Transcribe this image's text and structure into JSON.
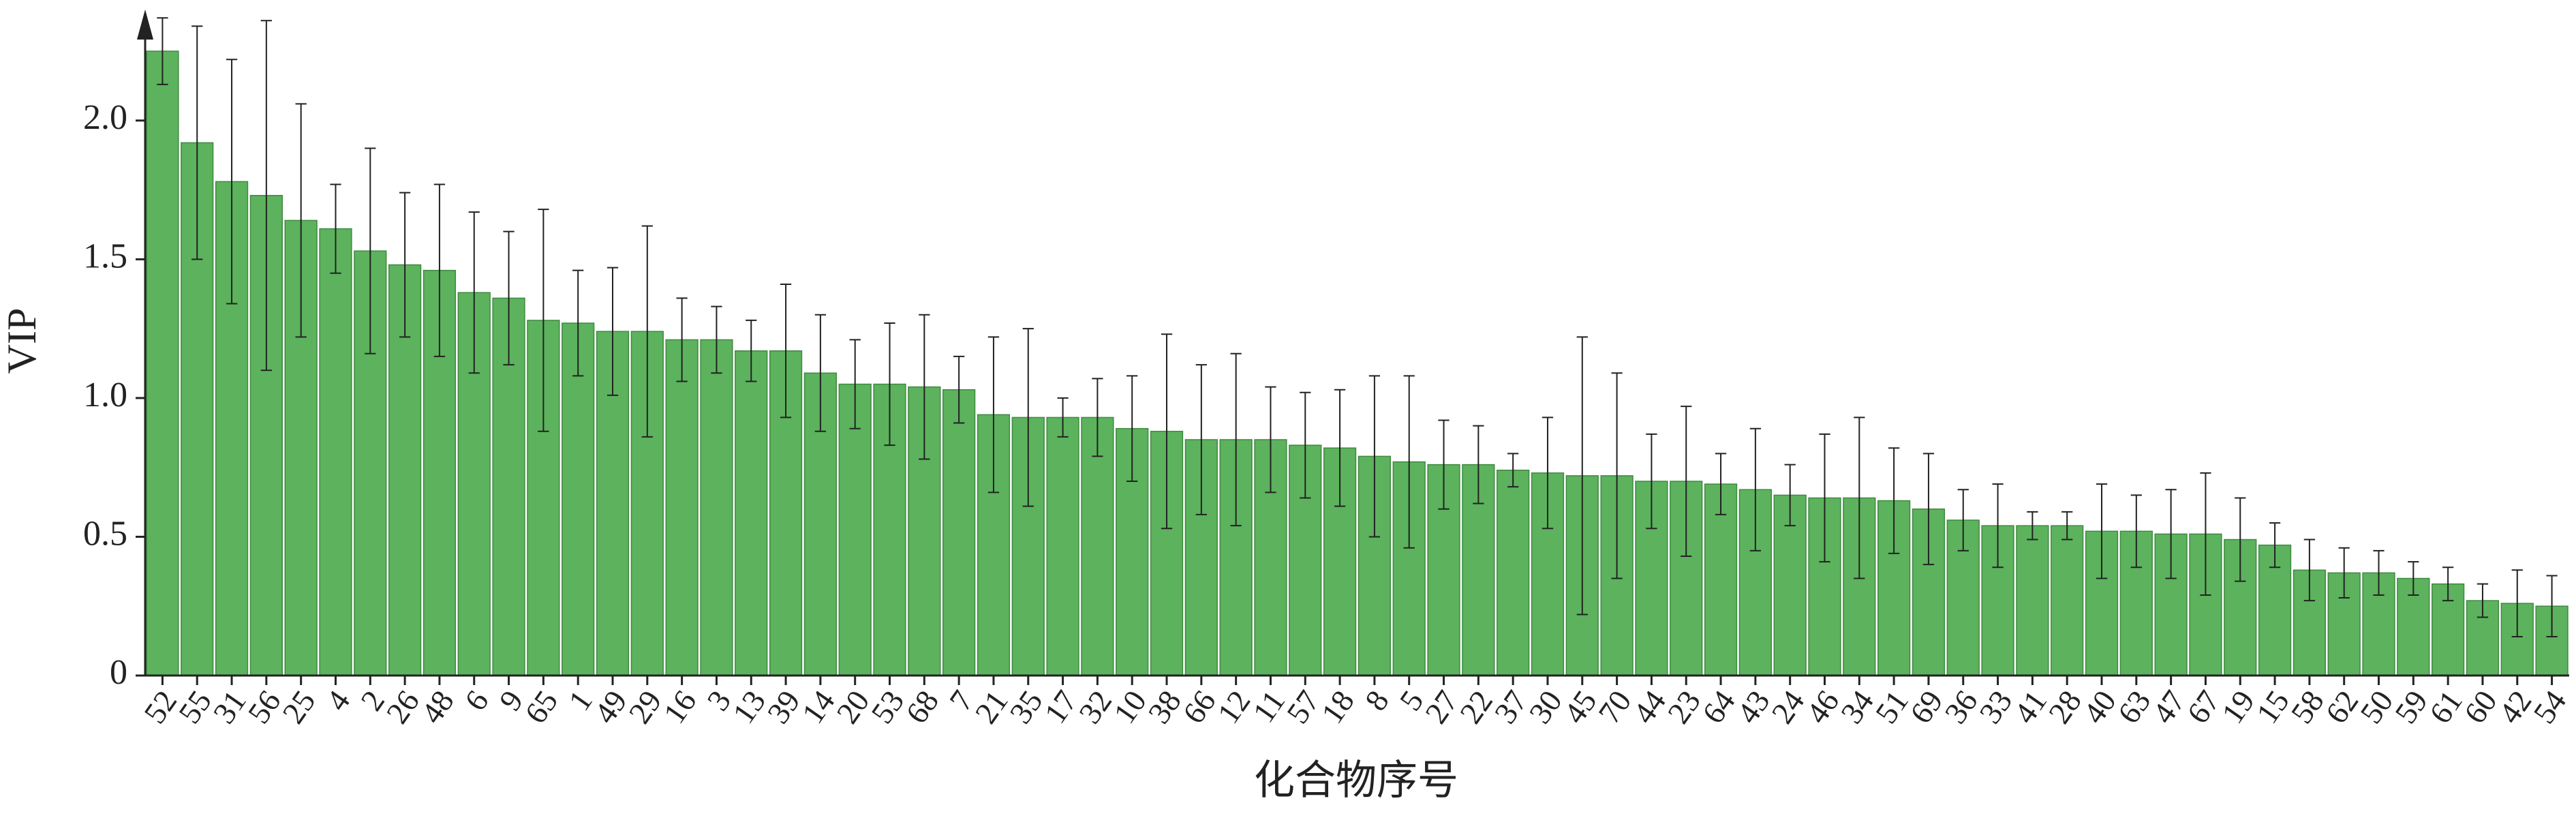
{
  "chart_data": {
    "type": "bar",
    "x_label": "化合物序号",
    "y_label": "VIP",
    "categories": [
      "52",
      "55",
      "31",
      "56",
      "25",
      "4",
      "2",
      "26",
      "48",
      "6",
      "9",
      "65",
      "1",
      "49",
      "29",
      "16",
      "3",
      "13",
      "39",
      "14",
      "20",
      "53",
      "68",
      "7",
      "21",
      "35",
      "17",
      "32",
      "10",
      "38",
      "66",
      "12",
      "11",
      "57",
      "18",
      "8",
      "5",
      "27",
      "22",
      "37",
      "30",
      "45",
      "70",
      "44",
      "23",
      "64",
      "43",
      "24",
      "46",
      "34",
      "51",
      "69",
      "36",
      "33",
      "41",
      "28",
      "40",
      "63",
      "47",
      "67",
      "19",
      "15",
      "58",
      "62",
      "50",
      "59",
      "61",
      "60",
      "42",
      "54"
    ],
    "values": [
      2.25,
      1.92,
      1.78,
      1.73,
      1.64,
      1.61,
      1.53,
      1.48,
      1.46,
      1.38,
      1.36,
      1.28,
      1.27,
      1.24,
      1.24,
      1.21,
      1.21,
      1.17,
      1.17,
      1.09,
      1.05,
      1.05,
      1.04,
      1.03,
      0.94,
      0.93,
      0.93,
      0.93,
      0.89,
      0.88,
      0.85,
      0.85,
      0.85,
      0.83,
      0.82,
      0.79,
      0.77,
      0.76,
      0.76,
      0.74,
      0.73,
      0.72,
      0.72,
      0.7,
      0.7,
      0.69,
      0.67,
      0.65,
      0.64,
      0.64,
      0.63,
      0.6,
      0.56,
      0.54,
      0.54,
      0.54,
      0.52,
      0.52,
      0.51,
      0.51,
      0.49,
      0.47,
      0.38,
      0.37,
      0.37,
      0.35,
      0.33,
      0.27,
      0.26,
      0.25
    ],
    "errors": [
      0.12,
      0.42,
      0.44,
      0.63,
      0.42,
      0.16,
      0.37,
      0.26,
      0.31,
      0.29,
      0.24,
      0.4,
      0.19,
      0.23,
      0.38,
      0.15,
      0.12,
      0.11,
      0.24,
      0.21,
      0.16,
      0.22,
      0.26,
      0.12,
      0.28,
      0.32,
      0.07,
      0.14,
      0.19,
      0.35,
      0.27,
      0.31,
      0.19,
      0.19,
      0.21,
      0.29,
      0.31,
      0.16,
      0.14,
      0.06,
      0.2,
      0.5,
      0.37,
      0.17,
      0.27,
      0.11,
      0.22,
      0.11,
      0.23,
      0.29,
      0.19,
      0.2,
      0.11,
      0.15,
      0.05,
      0.05,
      0.17,
      0.13,
      0.16,
      0.22,
      0.15,
      0.08,
      0.11,
      0.09,
      0.08,
      0.06,
      0.06,
      0.06,
      0.12,
      0.11
    ],
    "color": "#5cb25d",
    "ylim": [
      0,
      2.4
    ],
    "yticks": [
      0,
      0.5,
      {
        "value": 1.0,
        "label": "1.0"
      },
      1.5,
      {
        "value": 2.0,
        "label": "2.0"
      }
    ],
    "grid": false
  }
}
